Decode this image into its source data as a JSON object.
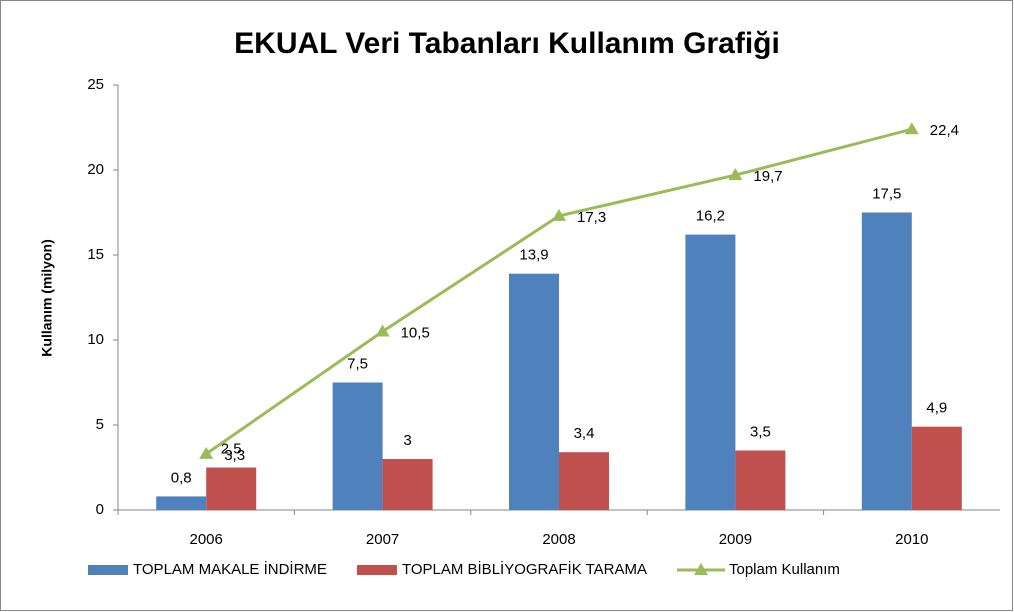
{
  "chart_data": {
    "type": "bar",
    "title": "EKUAL Veri Tabanları Kullanım Grafiği",
    "y_label": "Kullanım (milyon)",
    "categories": [
      "2006",
      "2007",
      "2008",
      "2009",
      "2010"
    ],
    "series": [
      {
        "name": "TOPLAM MAKALE İNDİRME",
        "color": "#4f81bd",
        "values": [
          0.8,
          7.5,
          13.9,
          16.2,
          17.5
        ],
        "value_labels": [
          "0,8",
          "7,5",
          "13,9",
          "16,2",
          "17,5"
        ]
      },
      {
        "name": "TOPLAM BİBLİYOGRAFİK TARAMA",
        "color": "#c0504d",
        "values": [
          2.5,
          3,
          3.4,
          3.5,
          4.9
        ],
        "value_labels": [
          "2,5",
          "3",
          "3,4",
          "3,5",
          "4,9"
        ]
      },
      {
        "name": "Toplam Kullanım",
        "type": "line",
        "color": "#9bbb59",
        "values": [
          3.3,
          10.5,
          17.3,
          19.7,
          22.4
        ],
        "value_labels": [
          "3,3",
          "10,5",
          "17,3",
          "19,7",
          "22,4"
        ]
      }
    ],
    "ylim": [
      0,
      25
    ],
    "yticks": [
      0,
      5,
      10,
      15,
      20,
      25
    ],
    "grid": false,
    "legend": "bottom"
  }
}
